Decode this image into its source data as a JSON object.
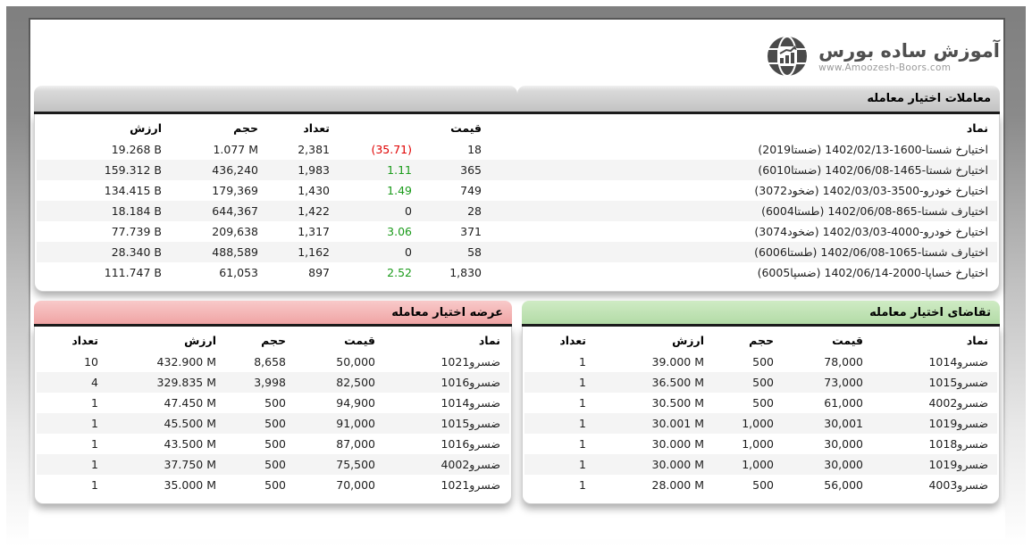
{
  "logo": {
    "title": "آموزش ساده بورس",
    "website": "www.Amoozesh-Boors.com",
    "icon": "globe-chart-icon"
  },
  "colors": {
    "negative": "#e00000",
    "positive": "#1b9b1b",
    "main_header": "#c6c6c6",
    "supply_header": "#f0a5a5",
    "demand_header": "#b3dba7"
  },
  "trades": {
    "title": "معاملات اختیار معامله",
    "columns": [
      "نماد",
      "قیمت",
      "",
      "تعداد",
      "حجم",
      "ارزش"
    ],
    "rows": [
      {
        "symbol": "اختیارخ شستا-1600-1402/02/13 (ضستا2019)",
        "price": "18",
        "change": "(35.71)",
        "change_dir": "neg",
        "count": "2,381",
        "volume": "1.077 M",
        "value": "19.268 B"
      },
      {
        "symbol": "اختیارخ شستا-1465-1402/06/08 (ضستا6010)",
        "price": "365",
        "change": "1.11",
        "change_dir": "pos",
        "count": "1,983",
        "volume": "436,240",
        "value": "159.312 B"
      },
      {
        "symbol": "اختیارخ خودرو-3500-1402/03/03 (ضخود3072)",
        "price": "749",
        "change": "1.49",
        "change_dir": "pos",
        "count": "1,430",
        "volume": "179,369",
        "value": "134.415 B"
      },
      {
        "symbol": "اختیارف شستا-865-1402/06/08 (طستا6004)",
        "price": "28",
        "change": "0",
        "change_dir": "zero",
        "count": "1,422",
        "volume": "644,367",
        "value": "18.184 B"
      },
      {
        "symbol": "اختیارخ خودرو-4000-1402/03/03 (ضخود3074)",
        "price": "371",
        "change": "3.06",
        "change_dir": "pos",
        "count": "1,317",
        "volume": "209,638",
        "value": "77.739 B"
      },
      {
        "symbol": "اختیارف شستا-1065-1402/06/08 (طستا6006)",
        "price": "58",
        "change": "0",
        "change_dir": "zero",
        "count": "1,162",
        "volume": "488,589",
        "value": "28.340 B"
      },
      {
        "symbol": "اختیارخ خساپا-2000-1402/06/14 (ضسپا6005)",
        "price": "1,830",
        "change": "2.52",
        "change_dir": "pos",
        "count": "897",
        "volume": "61,053",
        "value": "111.747 B"
      }
    ]
  },
  "supply": {
    "title": "عرضه اختیار معامله",
    "columns": [
      "نماد",
      "قیمت",
      "حجم",
      "ارزش",
      "تعداد"
    ],
    "rows": [
      {
        "symbol": "ضسرو1021",
        "price": "50,000",
        "volume": "8,658",
        "value": "432.900 M",
        "count": "10"
      },
      {
        "symbol": "ضسرو1016",
        "price": "82,500",
        "volume": "3,998",
        "value": "329.835 M",
        "count": "4"
      },
      {
        "symbol": "ضسرو1014",
        "price": "94,900",
        "volume": "500",
        "value": "47.450 M",
        "count": "1"
      },
      {
        "symbol": "ضسرو1015",
        "price": "91,000",
        "volume": "500",
        "value": "45.500 M",
        "count": "1"
      },
      {
        "symbol": "ضسرو1016",
        "price": "87,000",
        "volume": "500",
        "value": "43.500 M",
        "count": "1"
      },
      {
        "symbol": "ضسرو4002",
        "price": "75,500",
        "volume": "500",
        "value": "37.750 M",
        "count": "1"
      },
      {
        "symbol": "ضسرو1021",
        "price": "70,000",
        "volume": "500",
        "value": "35.000 M",
        "count": "1"
      }
    ]
  },
  "demand": {
    "title": "تقاضای اختیار معامله",
    "columns": [
      "نماد",
      "قیمت",
      "حجم",
      "ارزش",
      "تعداد"
    ],
    "rows": [
      {
        "symbol": "ضسرو1014",
        "price": "78,000",
        "volume": "500",
        "value": "39.000 M",
        "count": "1"
      },
      {
        "symbol": "ضسرو1015",
        "price": "73,000",
        "volume": "500",
        "value": "36.500 M",
        "count": "1"
      },
      {
        "symbol": "ضسرو4002",
        "price": "61,000",
        "volume": "500",
        "value": "30.500 M",
        "count": "1"
      },
      {
        "symbol": "ضسرو1019",
        "price": "30,001",
        "volume": "1,000",
        "value": "30.001 M",
        "count": "1"
      },
      {
        "symbol": "ضسرو1018",
        "price": "30,000",
        "volume": "1,000",
        "value": "30.000 M",
        "count": "1"
      },
      {
        "symbol": "ضسرو1019",
        "price": "30,000",
        "volume": "1,000",
        "value": "30.000 M",
        "count": "1"
      },
      {
        "symbol": "ضسرو4003",
        "price": "56,000",
        "volume": "500",
        "value": "28.000 M",
        "count": "1"
      }
    ]
  }
}
